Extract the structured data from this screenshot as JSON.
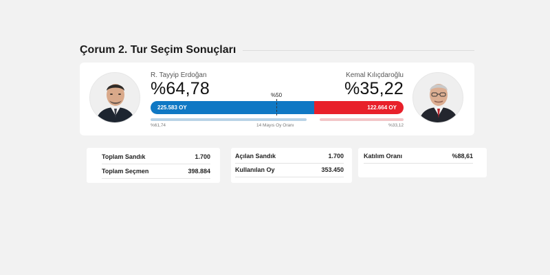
{
  "page": {
    "title": "Çorum 2. Tur Seçim Sonuçları"
  },
  "colors": {
    "candidate_1": "#0f78c4",
    "candidate_2": "#e8202a",
    "background": "#f2f2f2"
  },
  "candidates": [
    {
      "name": "R. Tayyip Erdoğan",
      "percent_label": "%64,78",
      "vote_label": "225.583 OY",
      "previous_label": "%61,74",
      "vote_share": 0.6478,
      "previous_share": 0.6174,
      "avatar_icon": "portrait-icon"
    },
    {
      "name": "Kemal Kılıçdaroğlu",
      "percent_label": "%35,22",
      "vote_label": "122.664 OY",
      "previous_label": "%33,12",
      "vote_share": 0.3522,
      "previous_share": 0.3312,
      "avatar_icon": "portrait-icon"
    }
  ],
  "bar": {
    "half_label": "%50",
    "previous_round_label": "14 Mayıs Oy Oranı"
  },
  "stats": {
    "card1": [
      {
        "label": "Toplam Sandık",
        "value": "1.700"
      },
      {
        "label": "Toplam Seçmen",
        "value": "398.884"
      }
    ],
    "card2": [
      {
        "label": "Açılan Sandık",
        "value": "1.700"
      },
      {
        "label": "Kullanılan Oy",
        "value": "353.450"
      }
    ],
    "card3": [
      {
        "label": "Katılım Oranı",
        "value": "%88,61"
      }
    ]
  }
}
